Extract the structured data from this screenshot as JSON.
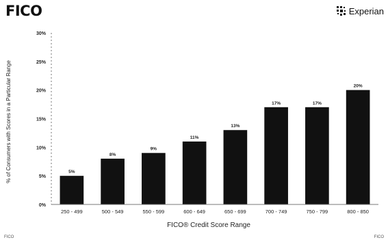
{
  "header": {
    "brand_left": "FICO",
    "brand_right": "Experian"
  },
  "footer": {
    "left": "FICO",
    "right": "FICO"
  },
  "colors": {
    "bar": "#111111",
    "axis": "#777777"
  },
  "chart_data": {
    "type": "bar",
    "title": "",
    "xlabel": "FICO® Credit Score Range",
    "ylabel": "% of Consumers with Scores in a Particular Range",
    "categories": [
      "250 - 499",
      "500 - 549",
      "550 - 599",
      "600 - 649",
      "650 - 699",
      "700 - 749",
      "750 - 799",
      "800 - 850"
    ],
    "values": [
      5,
      8,
      9,
      11,
      13,
      17,
      17,
      20
    ],
    "value_labels": [
      "5%",
      "8%",
      "9%",
      "11%",
      "13%",
      "17%",
      "17%",
      "20%"
    ],
    "yticks": [
      "0%",
      "5%",
      "10%",
      "15%",
      "20%",
      "25%",
      "30%"
    ],
    "ylim": [
      0,
      30
    ],
    "grid": false,
    "legend": "none"
  }
}
